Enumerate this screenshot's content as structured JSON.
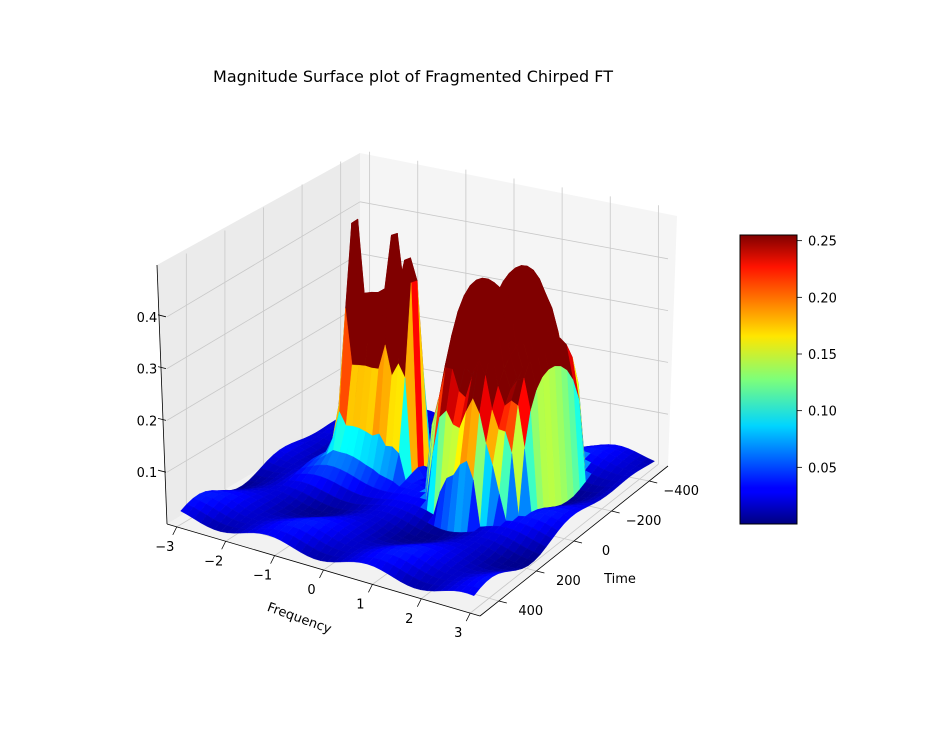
{
  "chart_data": {
    "type": "surface",
    "title": "Magnitude Surface plot of Fragmented Chirped FT",
    "xlabel": "Frequency",
    "ylabel": "Time",
    "zlabel": "",
    "x_ticks": [
      "−3",
      "−2",
      "−1",
      "0",
      "1",
      "2",
      "3"
    ],
    "y_ticks": [
      "−400",
      "−200",
      "0",
      "200",
      "400"
    ],
    "z_ticks": [
      "0.1",
      "0.2",
      "0.3",
      "0.4"
    ],
    "colorbar_ticks": [
      "0.05",
      "0.10",
      "0.15",
      "0.20",
      "0.25"
    ],
    "xlim": [
      -3.2,
      3.2
    ],
    "ylim": [
      -500,
      500
    ],
    "zlim": [
      0,
      0.5
    ],
    "colorbar_range": [
      0,
      0.255
    ],
    "colormap": "jet",
    "spikes": [
      {
        "x": -1.7,
        "z": 0.47
      },
      {
        "x": -1.6,
        "z": 0.44
      },
      {
        "x": -1.45,
        "z": 0.4
      },
      {
        "x": -1.3,
        "z": 0.47
      },
      {
        "x": -1.15,
        "z": 0.46
      },
      {
        "x": -1.0,
        "z": 0.41
      },
      {
        "x": -0.85,
        "z": 0.47
      },
      {
        "x": -0.72,
        "z": 0.45
      },
      {
        "x": -0.55,
        "z": 0.42
      },
      {
        "x": -0.4,
        "z": 0.39
      }
    ],
    "dome": {
      "x_range": [
        0.2,
        2.2
      ],
      "t_center": -150,
      "peak": 0.43
    },
    "base_level": 0.02
  }
}
